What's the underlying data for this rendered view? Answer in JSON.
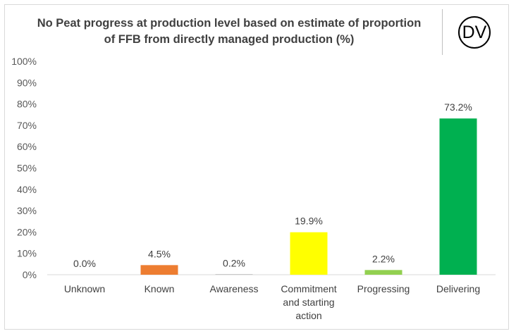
{
  "title_lines": [
    "No Peat progress at production level based on estimate of proportion",
    "of FFB from directly managed production (%)"
  ],
  "logo_text": "DV",
  "chart_data": {
    "type": "bar",
    "title": "No Peat progress at production level based on estimate of proportion of FFB from directly managed production (%)",
    "categories": [
      [
        "Unknown"
      ],
      [
        "Known"
      ],
      [
        "Awareness"
      ],
      [
        "Commitment",
        "and starting",
        "action"
      ],
      [
        "Progressing"
      ],
      [
        "Delivering"
      ]
    ],
    "values": [
      0.0,
      4.5,
      0.2,
      19.9,
      2.2,
      73.2
    ],
    "data_labels": [
      "0.0%",
      "4.5%",
      "0.2%",
      "19.9%",
      "2.2%",
      "73.2%"
    ],
    "colors": [
      "#a6a6a6",
      "#ed7d31",
      "#a6a6a6",
      "#ffff00",
      "#92d050",
      "#00b050"
    ],
    "ylim": [
      0,
      100
    ],
    "yticks": [
      0,
      10,
      20,
      30,
      40,
      50,
      60,
      70,
      80,
      90,
      100
    ],
    "ytick_labels": [
      "0%",
      "10%",
      "20%",
      "30%",
      "40%",
      "50%",
      "60%",
      "70%",
      "80%",
      "90%",
      "100%"
    ],
    "grid": false,
    "legend": "none"
  }
}
